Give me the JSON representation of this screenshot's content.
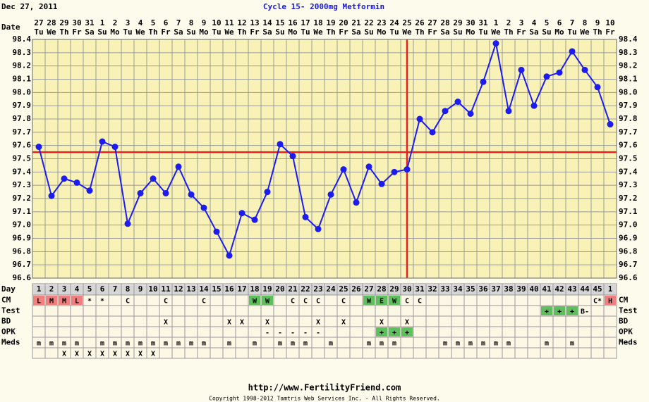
{
  "chart_data": {
    "type": "line",
    "date_label": "Dec 27, 2011",
    "title": "Cycle 15- 2000mg Metformin",
    "x_label": "Date",
    "categories": [
      "27",
      "28",
      "29",
      "30",
      "31",
      "1",
      "2",
      "3",
      "4",
      "5",
      "6",
      "7",
      "8",
      "9",
      "10",
      "11",
      "12",
      "13",
      "14",
      "15",
      "16",
      "17",
      "18",
      "19",
      "20",
      "21",
      "22",
      "23",
      "24",
      "25",
      "26",
      "27",
      "28",
      "29",
      "30",
      "31",
      "1",
      "2",
      "3",
      "4",
      "5",
      "6",
      "7",
      "8",
      "9",
      "10"
    ],
    "weekdays": [
      "Tu",
      "We",
      "Th",
      "Fr",
      "Sa",
      "Su",
      "Mo",
      "Tu",
      "We",
      "Th",
      "Fr",
      "Sa",
      "Su",
      "Mo",
      "Tu",
      "We",
      "Th",
      "Fr",
      "Sa",
      "Su",
      "Mo",
      "Tu",
      "We",
      "Th",
      "Fr",
      "Sa",
      "Su",
      "Mo",
      "Tu",
      "We",
      "Th",
      "Fr",
      "Sa",
      "Su",
      "Mo",
      "Tu",
      "We",
      "Th",
      "Fr",
      "Sa",
      "Su",
      "Mo",
      "Tu",
      "We",
      "Th",
      "Fr"
    ],
    "series": [
      {
        "color": "#1c1cf0",
        "values": [
          97.59,
          97.22,
          97.35,
          97.32,
          97.26,
          97.63,
          97.59,
          97.01,
          97.24,
          97.35,
          97.24,
          97.44,
          97.23,
          97.13,
          96.95,
          96.77,
          97.09,
          97.04,
          97.25,
          97.61,
          97.52,
          97.06,
          96.97,
          97.23,
          97.42,
          97.17,
          97.44,
          97.31,
          97.4,
          97.42,
          97.8,
          97.7,
          97.86,
          97.93,
          97.84,
          98.08,
          98.37,
          97.86,
          98.17,
          97.9,
          98.12,
          98.15,
          98.31,
          98.17,
          98.04,
          97.76
        ]
      }
    ],
    "ylim": [
      96.6,
      98.4
    ],
    "yticks": [
      96.6,
      96.7,
      96.8,
      96.9,
      {
        "value": 97,
        "label": "97.0"
      },
      97.1,
      97.2,
      97.3,
      97.4,
      97.5,
      97.6,
      97.7,
      97.8,
      97.9,
      {
        "value": 98,
        "label": "98.0"
      },
      98.1,
      98.2,
      98.3,
      98.4
    ],
    "grid": true,
    "coverline": 97.55,
    "coverline_color": "#e82020",
    "ovulation_day": 30,
    "day_row": {
      "label": "Day",
      "values": [
        1,
        2,
        3,
        4,
        5,
        6,
        7,
        8,
        9,
        10,
        11,
        12,
        13,
        14,
        15,
        16,
        17,
        18,
        19,
        20,
        21,
        22,
        23,
        24,
        25,
        26,
        27,
        28,
        29,
        30,
        31,
        32,
        33,
        34,
        35,
        36,
        37,
        38,
        39,
        40,
        41,
        42,
        43,
        44,
        45,
        1
      ]
    },
    "rows": [
      {
        "label": "CM",
        "cells": [
          "L",
          "M",
          "M",
          "L",
          "*",
          "*",
          null,
          "C",
          null,
          null,
          "C",
          null,
          null,
          "C",
          null,
          null,
          null,
          "W",
          "W",
          null,
          "C",
          "C",
          "C",
          null,
          "C",
          null,
          "W",
          "E",
          "W",
          "C",
          "C",
          null,
          null,
          null,
          null,
          null,
          null,
          null,
          null,
          null,
          null,
          null,
          null,
          null,
          "C*",
          "H"
        ],
        "cell_colors": [
          "#f08080",
          "#f08080",
          "#f08080",
          "#f08080",
          null,
          null,
          null,
          null,
          null,
          null,
          null,
          null,
          null,
          null,
          null,
          null,
          null,
          "#5fbf5f",
          "#5fbf5f",
          null,
          null,
          null,
          null,
          null,
          null,
          null,
          "#5fbf5f",
          "#5fbf5f",
          "#5fbf5f",
          null,
          null,
          null,
          null,
          null,
          null,
          null,
          null,
          null,
          null,
          null,
          null,
          null,
          null,
          null,
          null,
          "#f08080"
        ]
      },
      {
        "label": "Test",
        "cells": [
          null,
          null,
          null,
          null,
          null,
          null,
          null,
          null,
          null,
          null,
          null,
          null,
          null,
          null,
          null,
          null,
          null,
          null,
          null,
          null,
          null,
          null,
          null,
          null,
          null,
          null,
          null,
          null,
          null,
          null,
          null,
          null,
          null,
          null,
          null,
          null,
          null,
          null,
          null,
          null,
          "+",
          "+",
          "+",
          "B-",
          null,
          null
        ],
        "cell_colors": [
          null,
          null,
          null,
          null,
          null,
          null,
          null,
          null,
          null,
          null,
          null,
          null,
          null,
          null,
          null,
          null,
          null,
          null,
          null,
          null,
          null,
          null,
          null,
          null,
          null,
          null,
          null,
          null,
          null,
          null,
          null,
          null,
          null,
          null,
          null,
          null,
          null,
          null,
          null,
          null,
          "#5fbf5f",
          "#5fbf5f",
          "#5fbf5f",
          null,
          null,
          null
        ]
      },
      {
        "label": "BD",
        "cells": [
          null,
          null,
          null,
          null,
          null,
          null,
          null,
          null,
          null,
          null,
          "X",
          null,
          null,
          null,
          null,
          "X",
          "X",
          null,
          "X",
          null,
          null,
          null,
          "X",
          null,
          "X",
          null,
          null,
          "X",
          null,
          "X",
          null,
          null,
          null,
          null,
          null,
          null,
          null,
          null,
          null,
          null,
          null,
          null,
          null,
          null,
          null,
          null
        ]
      },
      {
        "label": "OPK",
        "cells": [
          null,
          null,
          null,
          null,
          null,
          null,
          null,
          null,
          null,
          null,
          null,
          null,
          null,
          null,
          null,
          null,
          null,
          null,
          "-",
          "-",
          "-",
          "-",
          "-",
          null,
          null,
          null,
          null,
          "+",
          "+",
          "+",
          null,
          null,
          null,
          null,
          null,
          null,
          null,
          null,
          null,
          null,
          null,
          null,
          null,
          null,
          null,
          null
        ],
        "cell_colors": [
          null,
          null,
          null,
          null,
          null,
          null,
          null,
          null,
          null,
          null,
          null,
          null,
          null,
          null,
          null,
          null,
          null,
          null,
          null,
          null,
          null,
          null,
          null,
          null,
          null,
          null,
          null,
          "#5fbf5f",
          "#5fbf5f",
          "#5fbf5f",
          null,
          null,
          null,
          null,
          null,
          null,
          null,
          null,
          null,
          null,
          null,
          null,
          null,
          null,
          null,
          null
        ]
      },
      {
        "label": "Meds",
        "cells": [
          "m",
          "m",
          "m",
          "m",
          null,
          "m",
          "m",
          "m",
          "m",
          "m",
          "m",
          "m",
          "m",
          "m",
          null,
          "m",
          null,
          "m",
          null,
          "m",
          "m",
          "m",
          null,
          "m",
          null,
          null,
          "m",
          "m",
          "m",
          null,
          null,
          null,
          "m",
          "m",
          "m",
          "m",
          "m",
          "m",
          null,
          null,
          "m",
          null,
          "m",
          null,
          null,
          null
        ]
      },
      {
        "cells": [
          null,
          null,
          "X",
          "X",
          "X",
          "X",
          "X",
          "X",
          "X",
          "X",
          null,
          null,
          null,
          null,
          null,
          null,
          null,
          null,
          null,
          null,
          null,
          null,
          null,
          null,
          null,
          null,
          null,
          null,
          null,
          null,
          null,
          null,
          null,
          null,
          null,
          null,
          null,
          null,
          null,
          null,
          null,
          null,
          null,
          null,
          null,
          null
        ]
      }
    ],
    "footer_url": "http://www.FertilityFriend.com",
    "copyright": "Copyright 1998-2012 Tamtris Web Services Inc. - All Rights Reserved."
  }
}
